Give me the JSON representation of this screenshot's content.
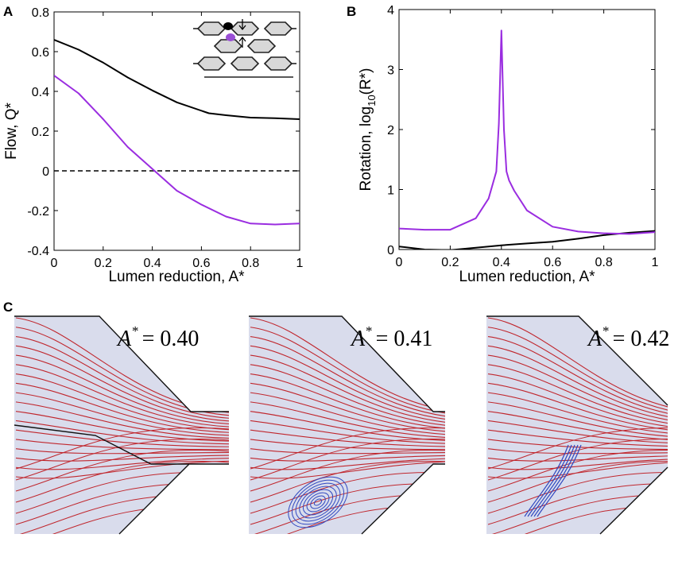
{
  "panel_labels": {
    "a": "A",
    "b": "B",
    "c": "C"
  },
  "chart_data": [
    {
      "type": "line",
      "panel": "A",
      "xlabel": "Lumen reduction, A*",
      "ylabel": "Flow, Q*",
      "xlim": [
        0,
        1
      ],
      "ylim": [
        -0.4,
        0.8
      ],
      "xticks": [
        "0",
        "0.2",
        "0.4",
        "0.6",
        "0.8",
        "1"
      ],
      "yticks": [
        "-0.4",
        "-0.2",
        "0",
        "0.2",
        "0.4",
        "0.6",
        "0.8"
      ],
      "reference_line": {
        "y": 0,
        "style": "dashed"
      },
      "series": [
        {
          "name": "black",
          "color": "#000000",
          "x": [
            0,
            0.1,
            0.2,
            0.3,
            0.4,
            0.5,
            0.63,
            0.7,
            0.8,
            0.9,
            1.0
          ],
          "y": [
            0.66,
            0.61,
            0.545,
            0.47,
            0.405,
            0.345,
            0.29,
            0.28,
            0.268,
            0.265,
            0.26
          ]
        },
        {
          "name": "purple",
          "color": "#9a2de0",
          "x": [
            0,
            0.1,
            0.2,
            0.3,
            0.4,
            0.5,
            0.6,
            0.7,
            0.8,
            0.9,
            1.0
          ],
          "y": [
            0.48,
            0.39,
            0.26,
            0.12,
            0.01,
            -0.1,
            -0.17,
            -0.23,
            -0.265,
            -0.27,
            -0.265
          ]
        }
      ]
    },
    {
      "type": "line",
      "panel": "B",
      "xlabel": "Lumen reduction, A*",
      "ylabel": "Rotation, log",
      "ylabel_sub": "10",
      "ylabel_tail": "(R*)",
      "xlim": [
        0,
        1
      ],
      "ylim": [
        0,
        4
      ],
      "xticks": [
        "0",
        "0.2",
        "0.4",
        "0.6",
        "0.8",
        "1"
      ],
      "yticks": [
        "0",
        "1",
        "2",
        "3",
        "4"
      ],
      "series": [
        {
          "name": "black",
          "color": "#000000",
          "x": [
            0,
            0.1,
            0.2,
            0.3,
            0.4,
            0.5,
            0.6,
            0.7,
            0.8,
            0.9,
            1.0
          ],
          "y": [
            0.05,
            0.0,
            -0.01,
            0.03,
            0.07,
            0.1,
            0.13,
            0.18,
            0.24,
            0.28,
            0.31
          ]
        },
        {
          "name": "purple",
          "color": "#9a2de0",
          "x": [
            0,
            0.1,
            0.2,
            0.3,
            0.35,
            0.38,
            0.39,
            0.4,
            0.41,
            0.42,
            0.43,
            0.45,
            0.5,
            0.6,
            0.7,
            0.8,
            0.9,
            1.0
          ],
          "y": [
            0.35,
            0.33,
            0.33,
            0.52,
            0.85,
            1.3,
            2.1,
            3.65,
            2.0,
            1.3,
            1.15,
            0.98,
            0.65,
            0.38,
            0.3,
            0.27,
            0.26,
            0.29
          ]
        }
      ]
    }
  ],
  "flow_panels": [
    {
      "var": "A",
      "sup": "*",
      "eq": "= 0.40"
    },
    {
      "var": "A",
      "sup": "*",
      "eq": "= 0.41"
    },
    {
      "var": "A",
      "sup": "*",
      "eq": "= 0.42"
    }
  ]
}
